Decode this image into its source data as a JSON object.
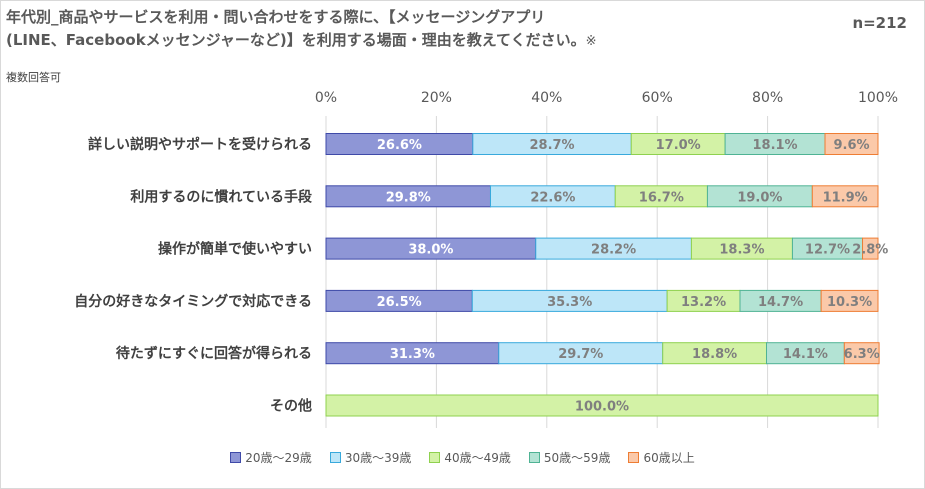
{
  "title": {
    "line1": "年代別_商品やサービスを利用・問い合わせをする際に、【メッセージングアプリ",
    "line2": "(LINE、Facebookメッセンジャーなど)】を利用する場面・理由を教えてください。",
    "mark": "※",
    "subtitle": "複数回答可",
    "n_label": "n=212"
  },
  "chart_data": {
    "type": "bar",
    "orientation": "horizontal",
    "stacked": "percent",
    "xlim": [
      0,
      100
    ],
    "x_ticks": [
      "0%",
      "20%",
      "40%",
      "60%",
      "80%",
      "100%"
    ],
    "grid": true,
    "legend_position": "bottom",
    "categories": [
      "詳しい説明やサポートを受けられる",
      "利用するのに慣れている手段",
      "操作が簡単で使いやすい",
      "自分の好きなタイミングで対応できる",
      "待たずにすぐに回答が得られる",
      "その他"
    ],
    "series": [
      {
        "name": "20歳～29歳",
        "color": "#8e96d6",
        "border": "#3f4aa8",
        "label_color": "#ffffff",
        "values": [
          26.6,
          29.8,
          38.0,
          26.5,
          31.3,
          0
        ]
      },
      {
        "name": "30歳～39歳",
        "color": "#bde6f8",
        "border": "#38a9dc",
        "label_color": "#7f7f7f",
        "values": [
          28.7,
          22.6,
          28.2,
          35.3,
          29.7,
          0
        ]
      },
      {
        "name": "40歳～49歳",
        "color": "#d3f2a6",
        "border": "#8fd14f",
        "label_color": "#7f7f7f",
        "values": [
          17.0,
          16.7,
          18.3,
          13.2,
          18.8,
          100.0
        ]
      },
      {
        "name": "50歳～59歳",
        "color": "#b3e3d4",
        "border": "#4fb394",
        "label_color": "#7f7f7f",
        "values": [
          18.1,
          19.0,
          12.7,
          14.7,
          14.1,
          0
        ]
      },
      {
        "name": "60歳以上",
        "color": "#fbc9a9",
        "border": "#ee7d34",
        "label_color": "#7f7f7f",
        "values": [
          9.6,
          11.9,
          2.8,
          10.3,
          6.3,
          0
        ]
      }
    ],
    "data_labels": [
      [
        "26.6%",
        "28.7%",
        "17.0%",
        "18.1%",
        "9.6%"
      ],
      [
        "29.8%",
        "22.6%",
        "16.7%",
        "19.0%",
        "11.9%"
      ],
      [
        "38.0%",
        "28.2%",
        "18.3%",
        "12.7%",
        "2.8%"
      ],
      [
        "26.5%",
        "35.3%",
        "13.2%",
        "14.7%",
        "10.3%"
      ],
      [
        "31.3%",
        "29.7%",
        "18.8%",
        "14.1%",
        "6.3%"
      ],
      [
        "",
        "",
        "100.0%",
        "",
        ""
      ]
    ]
  }
}
